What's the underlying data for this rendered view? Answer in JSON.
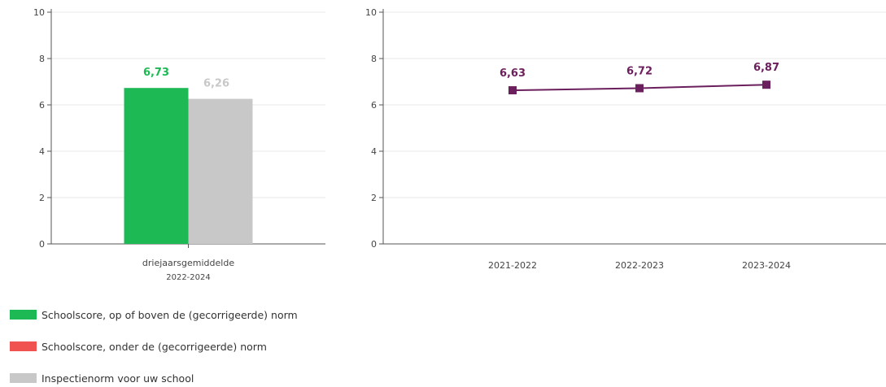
{
  "colors": {
    "above_norm": "#1db954",
    "below_norm": "#f0524f",
    "inspection_norm": "#c8c8c8",
    "trend_line": "#6b1f5c",
    "axis": "#555555",
    "grid": "#e8e8e8"
  },
  "chart_data": [
    {
      "type": "bar",
      "categories": [
        "driejaarsgemiddelde"
      ],
      "category_sublabels": [
        "2022-2024"
      ],
      "series": [
        {
          "values": [
            6.73
          ],
          "labels": [
            "6,73"
          ],
          "color_key": "above_norm"
        },
        {
          "values": [
            6.26
          ],
          "labels": [
            "6,26"
          ],
          "color_key": "inspection_norm"
        }
      ],
      "ylim": [
        0,
        10
      ],
      "yticks": [
        "0",
        "2",
        "4",
        "6",
        "8",
        "10"
      ],
      "grid": true
    },
    {
      "type": "line",
      "categories": [
        "2021-2022",
        "2022-2023",
        "2023-2024"
      ],
      "series": [
        {
          "values": [
            6.63,
            6.72,
            6.87
          ],
          "labels": [
            "6,63",
            "6,72",
            "6,87"
          ],
          "color_key": "trend_line",
          "marker": "square"
        }
      ],
      "ylim": [
        0,
        10
      ],
      "yticks": [
        "0",
        "2",
        "4",
        "6",
        "8",
        "10"
      ],
      "grid": true
    }
  ],
  "legend": {
    "items": [
      {
        "label": "Schoolscore, op of boven de (gecorrigeerde) norm",
        "color_key": "above_norm"
      },
      {
        "label": "Schoolscore, onder de (gecorrigeerde) norm",
        "color_key": "below_norm"
      },
      {
        "label": "Inspectienorm voor uw school",
        "color_key": "inspection_norm"
      }
    ]
  }
}
